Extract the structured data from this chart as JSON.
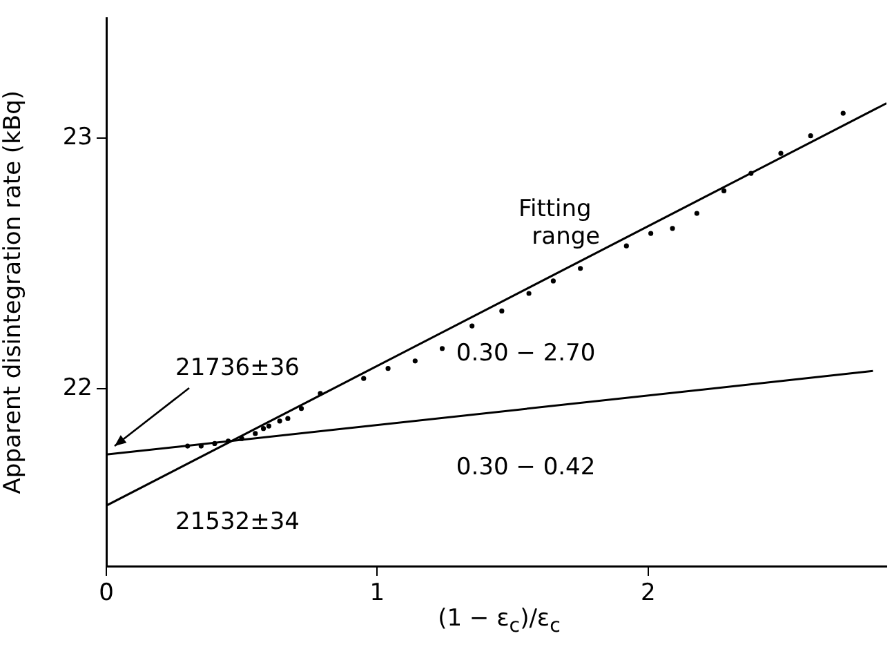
{
  "chart_data": {
    "type": "scatter",
    "xlabel": "(1 − ε$_{c}$)/ε$_{c}$",
    "ylabel": "Apparent disintegration rate (kBq)",
    "legend_title": "Fitting range",
    "xlim": [
      0,
      2.88
    ],
    "ylim": [
      21.29,
      23.48
    ],
    "xticks": [
      0,
      1,
      2
    ],
    "yticks": [
      22,
      23
    ],
    "grid": false,
    "series": [
      {
        "color": "#000000",
        "marker": "circle",
        "x": [
          0.3,
          0.35,
          0.4,
          0.45,
          0.5,
          0.55,
          0.58,
          0.6,
          0.64,
          0.67,
          0.72,
          0.79,
          0.95,
          1.04,
          1.14,
          1.24,
          1.35,
          1.46,
          1.56,
          1.65,
          1.75,
          1.92,
          2.01,
          2.09,
          2.18,
          2.28,
          2.38,
          2.49,
          2.6,
          2.72
        ],
        "values": [
          21.77,
          21.77,
          21.78,
          21.79,
          21.8,
          21.82,
          21.84,
          21.85,
          21.87,
          21.88,
          21.92,
          21.98,
          22.04,
          22.08,
          22.11,
          22.16,
          22.25,
          22.31,
          22.38,
          22.43,
          22.48,
          22.57,
          22.62,
          22.64,
          22.7,
          22.79,
          22.86,
          22.94,
          23.01,
          23.1
        ]
      },
      {
        "type": "line",
        "name": "0.30 − 2.70",
        "color": "#000000",
        "marker": "none",
        "x": [
          0,
          2.88
        ],
        "values": [
          21.532,
          23.14
        ]
      },
      {
        "type": "line",
        "name": "0.30 − 0.42",
        "color": "#000000",
        "marker": "none",
        "x": [
          0,
          2.83
        ],
        "values": [
          21.736,
          22.07
        ]
      }
    ],
    "annotations": [
      {
        "text": "21736±36",
        "x": 0,
        "y": 21.736
      },
      "21532±34"
    ]
  }
}
